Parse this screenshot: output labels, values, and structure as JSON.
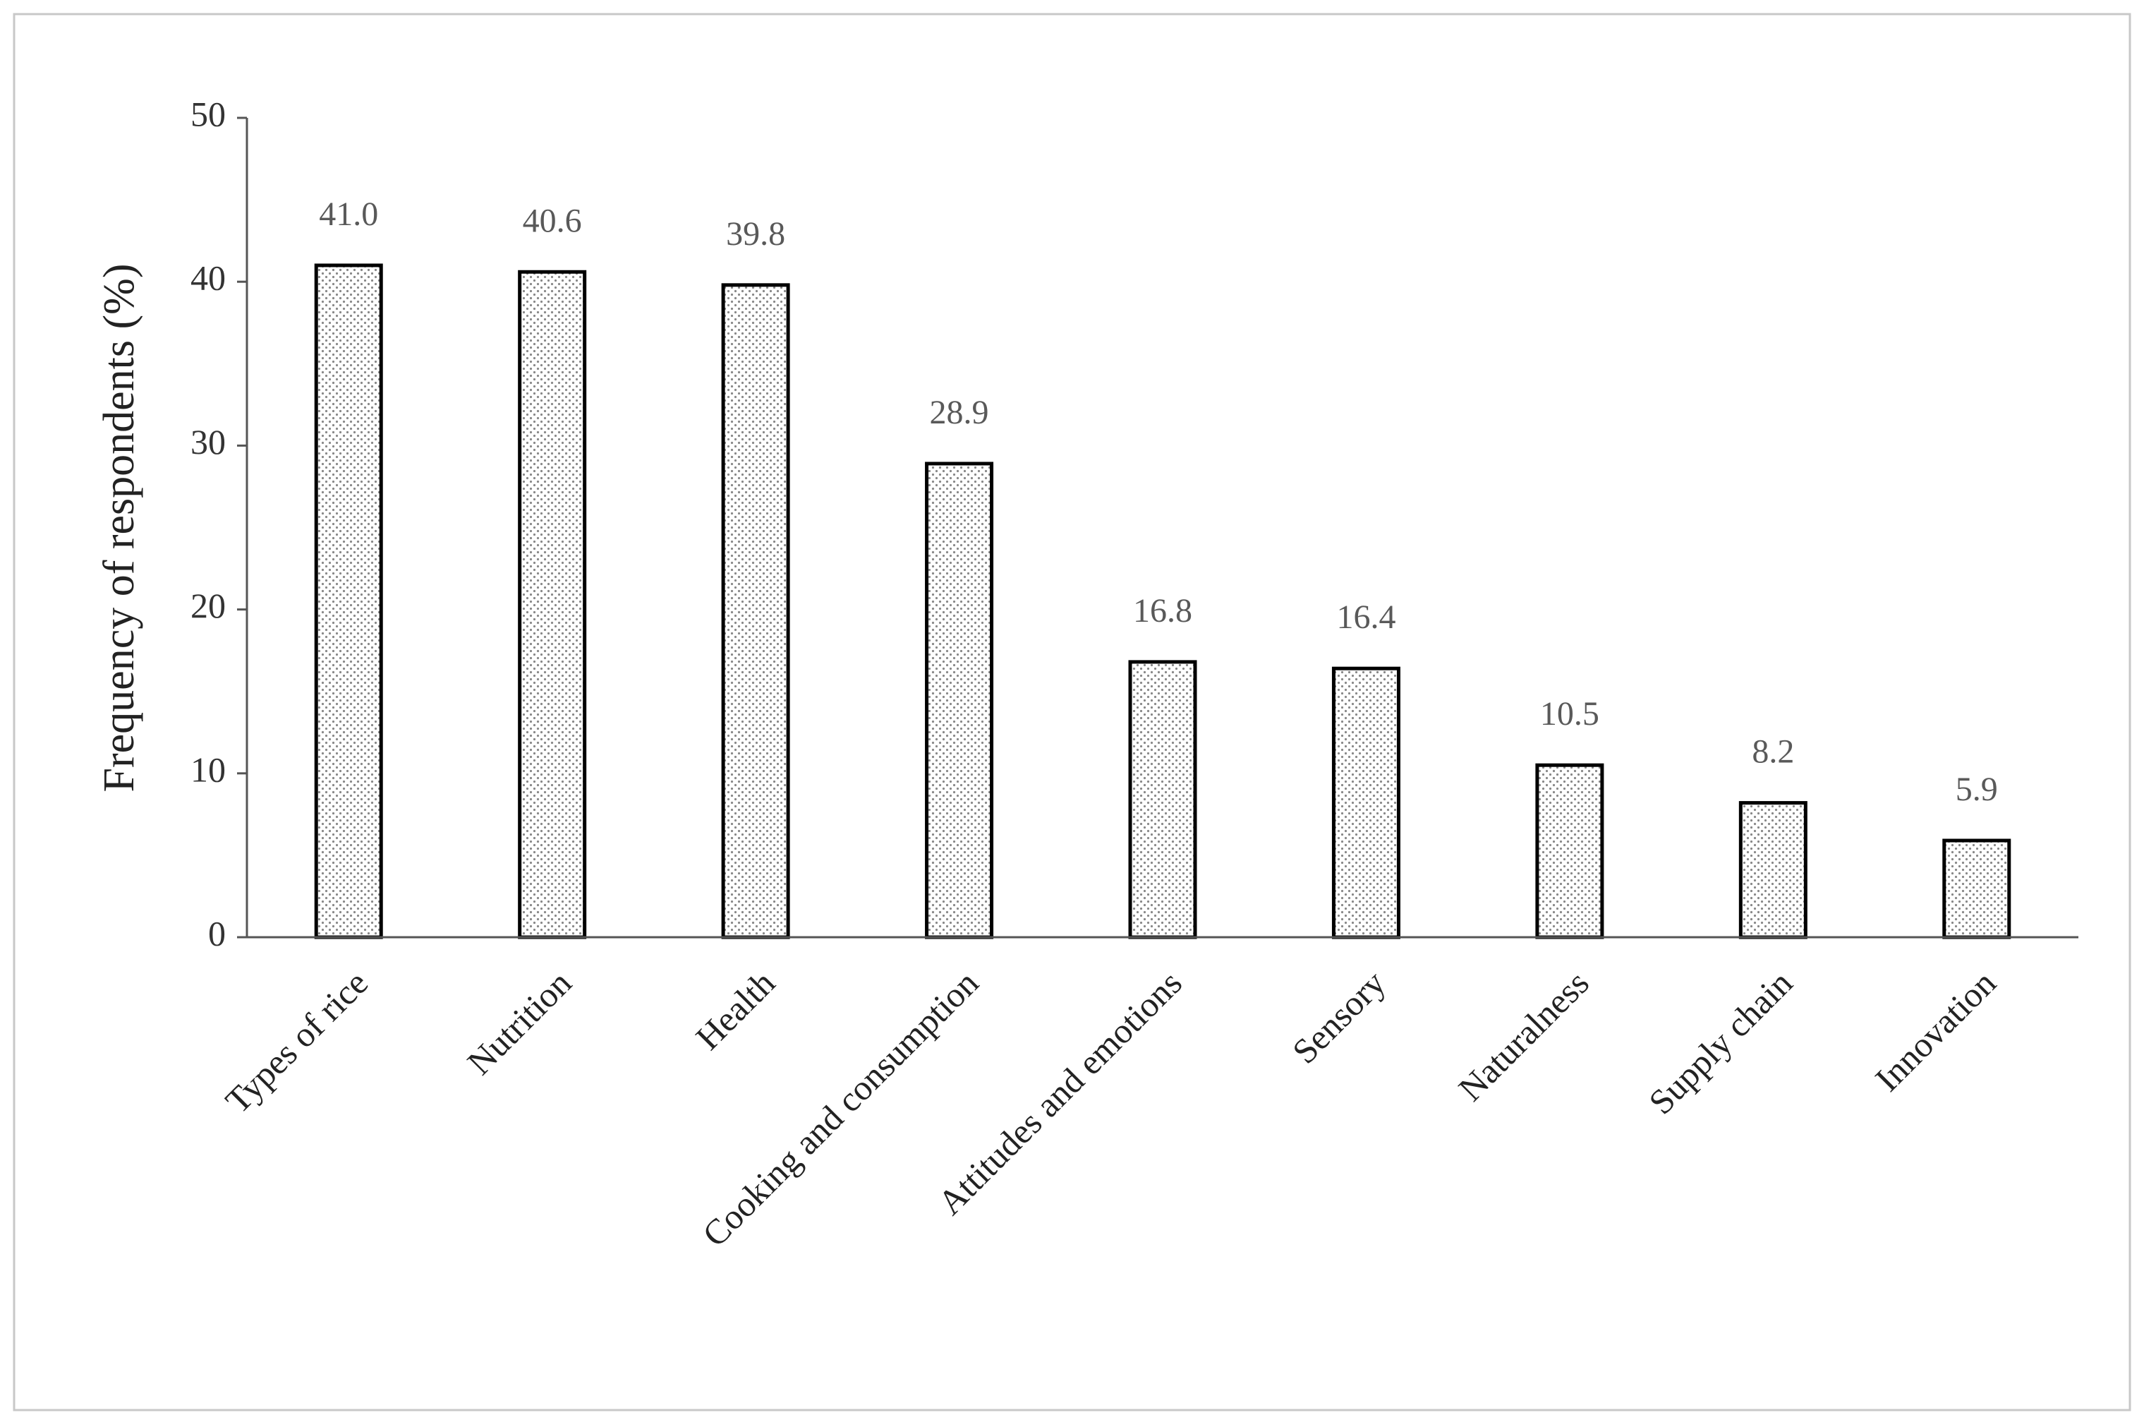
{
  "chart_data": {
    "type": "bar",
    "y_label": "Frequency of respondents (%)",
    "categories": [
      "Types of rice",
      "Nutrition",
      "Health",
      "Cooking and consumption",
      "Attitudes and emotions",
      "Sensory",
      "Naturalness",
      "Supply chain",
      "Innovation"
    ],
    "values": [
      41.0,
      40.6,
      39.8,
      28.9,
      16.8,
      16.4,
      10.5,
      8.2,
      5.9
    ],
    "value_labels": [
      "41.0",
      "40.6",
      "39.8",
      "28.9",
      "16.8",
      "16.4",
      "10.5",
      "8.2",
      "5.9"
    ],
    "color": "#000000",
    "ylim": [
      0,
      50
    ],
    "yticks": [
      0,
      10,
      20,
      30,
      40,
      50
    ],
    "grid": false
  }
}
